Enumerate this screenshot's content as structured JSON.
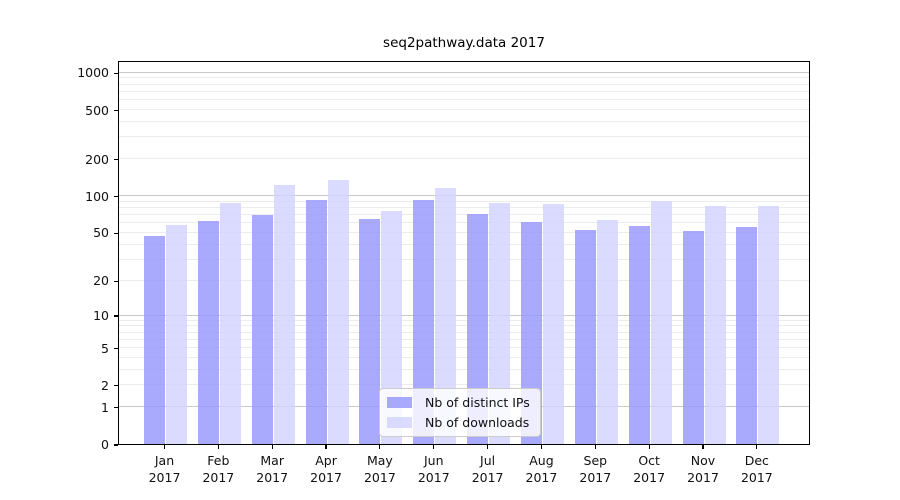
{
  "title": "seq2pathway.data 2017",
  "chart_data": {
    "type": "bar",
    "title": "seq2pathway.data 2017",
    "months": [
      "Jan",
      "Feb",
      "Mar",
      "Apr",
      "May",
      "Jun",
      "Jul",
      "Aug",
      "Sep",
      "Oct",
      "Nov",
      "Dec"
    ],
    "year": "2017",
    "series": [
      {
        "name": "Nb of distinct IPs",
        "color": "rgba(150,150,252,0.82)",
        "values": [
          47,
          62,
          70,
          92,
          65,
          93,
          71,
          61,
          52,
          57,
          51,
          55
        ]
      },
      {
        "name": "Nb of downloads",
        "color": "rgba(211,211,255,0.82)",
        "values": [
          58,
          88,
          123,
          135,
          75,
          115,
          88,
          86,
          63,
          90,
          82,
          83
        ]
      }
    ],
    "y_ticks": [
      0,
      1,
      2,
      5,
      10,
      20,
      50,
      100,
      200,
      500,
      1000
    ],
    "y_major_gridlines": [
      1,
      10,
      100,
      1000
    ],
    "y_scale": "log1p",
    "ylim": [
      0,
      1000
    ],
    "xlabel": "",
    "ylabel": "",
    "grid": true,
    "legend_position": "lower center"
  },
  "colors": {
    "bar_distinct_ips": "rgba(150,150,252,0.82)",
    "bar_downloads": "rgba(211,211,255,0.82)",
    "gridline_major": "#c9c9c9",
    "gridline_minor": "#ececec",
    "frame": "#000000",
    "legend_border": "#cccccc"
  }
}
